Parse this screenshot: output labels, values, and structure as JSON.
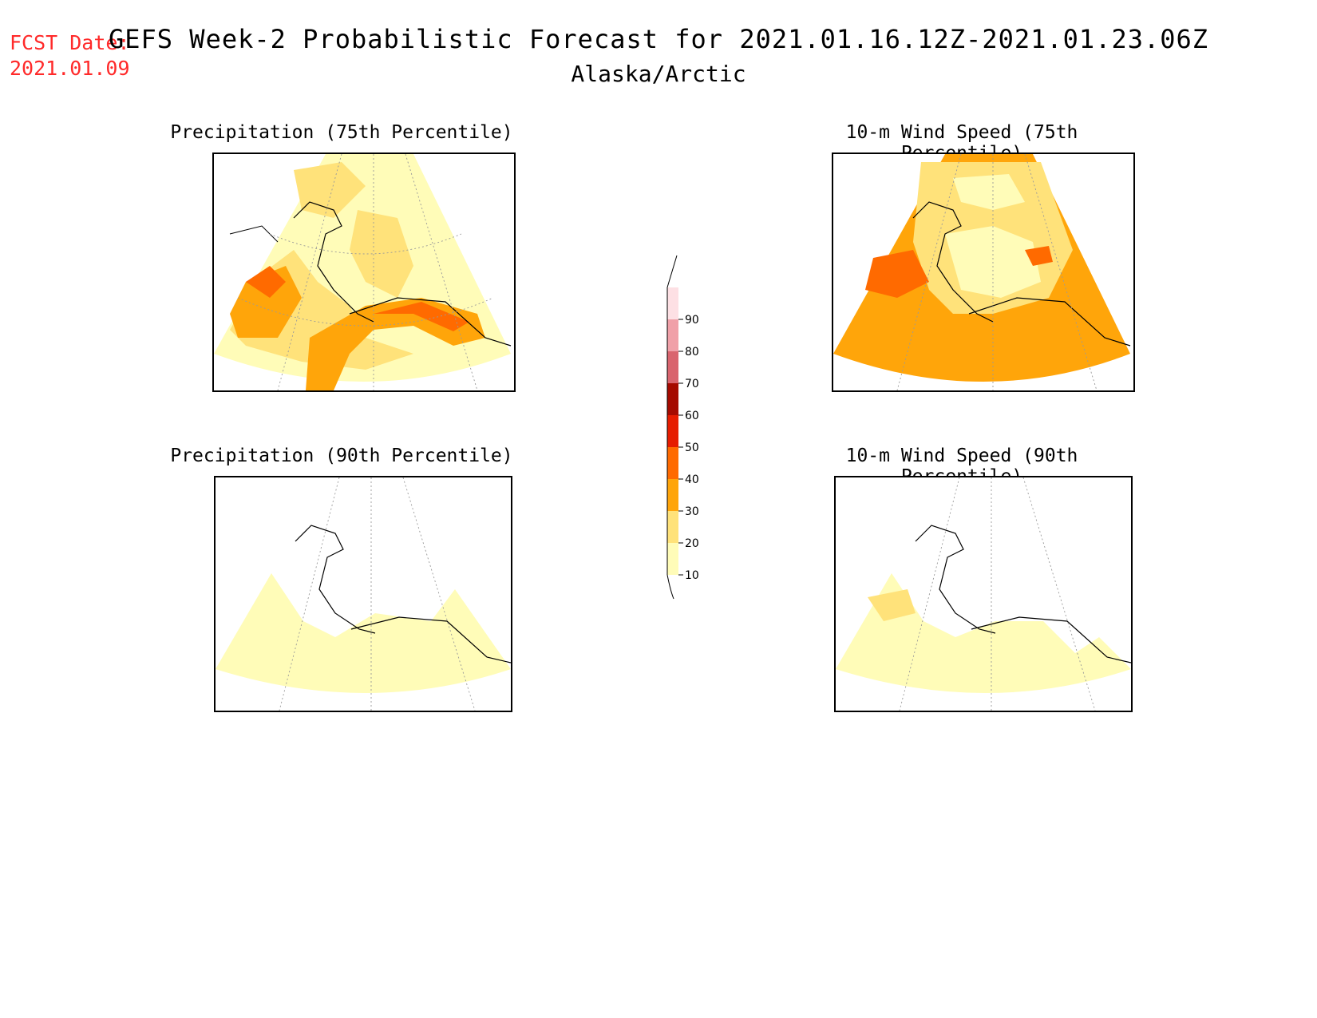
{
  "header": {
    "fcst_label": "FCST Date:",
    "fcst_date": "2021.01.09",
    "title": "GEFS Week-2 Probabilistic Forecast for 2021.01.16.12Z-2021.01.23.06Z",
    "region": "Alaska/Arctic"
  },
  "panels": [
    {
      "title": "Precipitation (75th Percentile)"
    },
    {
      "title": "10-m Wind Speed (75th Percentile)"
    },
    {
      "title": "Precipitation (90th Percentile)"
    },
    {
      "title": "10-m Wind Speed (90th Percentile)"
    }
  ],
  "legend": {
    "levels": [
      "10",
      "20",
      "30",
      "40",
      "50",
      "60",
      "70",
      "80",
      "90"
    ],
    "colors": [
      "#fffcb8",
      "#ffe27a",
      "#ffa50a",
      "#ff6a00",
      "#e61c00",
      "#a50a00",
      "#d9646e",
      "#f0a0a8",
      "#fde0e4"
    ]
  }
}
